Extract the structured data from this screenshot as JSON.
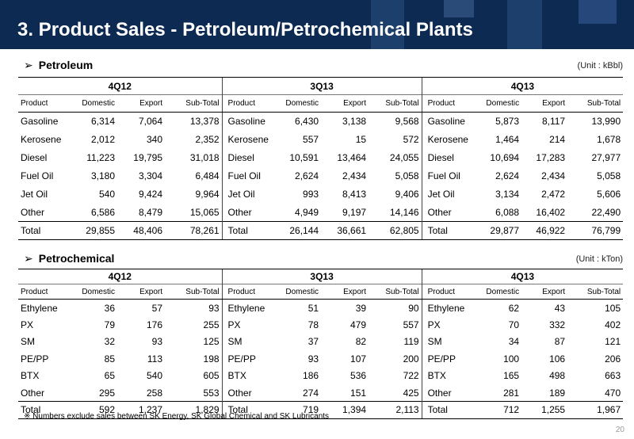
{
  "title": "3. Product Sales - Petroleum/Petrochemical Plants",
  "petroleum": {
    "heading": "Petroleum",
    "unit": "(Unit : kBbl)",
    "quarters": [
      "4Q12",
      "3Q13",
      "4Q13"
    ],
    "columns": [
      "Product",
      "Domestic",
      "Export",
      "Sub-Total"
    ],
    "rows": [
      [
        [
          "Gasoline",
          "6,314",
          "7,064",
          "13,378"
        ],
        [
          "Gasoline",
          "6,430",
          "3,138",
          "9,568"
        ],
        [
          "Gasoline",
          "5,873",
          "8,117",
          "13,990"
        ]
      ],
      [
        [
          "Kerosene",
          "2,012",
          "340",
          "2,352"
        ],
        [
          "Kerosene",
          "557",
          "15",
          "572"
        ],
        [
          "Kerosene",
          "1,464",
          "214",
          "1,678"
        ]
      ],
      [
        [
          "Diesel",
          "11,223",
          "19,795",
          "31,018"
        ],
        [
          "Diesel",
          "10,591",
          "13,464",
          "24,055"
        ],
        [
          "Diesel",
          "10,694",
          "17,283",
          "27,977"
        ]
      ],
      [
        [
          "Fuel Oil",
          "3,180",
          "3,304",
          "6,484"
        ],
        [
          "Fuel Oil",
          "2,624",
          "2,434",
          "5,058"
        ],
        [
          "Fuel Oil",
          "2,624",
          "2,434",
          "5,058"
        ]
      ],
      [
        [
          "Jet Oil",
          "540",
          "9,424",
          "9,964"
        ],
        [
          "Jet Oil",
          "993",
          "8,413",
          "9,406"
        ],
        [
          "Jet Oil",
          "3,134",
          "2,472",
          "5,606"
        ]
      ],
      [
        [
          "Other",
          "6,586",
          "8,479",
          "15,065"
        ],
        [
          "Other",
          "4,949",
          "9,197",
          "14,146"
        ],
        [
          "Other",
          "6,088",
          "16,402",
          "22,490"
        ]
      ]
    ],
    "total": [
      [
        "Total",
        "29,855",
        "48,406",
        "78,261"
      ],
      [
        "Total",
        "26,144",
        "36,661",
        "62,805"
      ],
      [
        "Total",
        "29,877",
        "46,922",
        "76,799"
      ]
    ]
  },
  "petrochemical": {
    "heading": "Petrochemical",
    "unit": "(Unit : kTon)",
    "quarters": [
      "4Q12",
      "3Q13",
      "4Q13"
    ],
    "columns": [
      "Product",
      "Domestic",
      "Export",
      "Sub-Total"
    ],
    "rows": [
      [
        [
          "Ethylene",
          "36",
          "57",
          "93"
        ],
        [
          "Ethylene",
          "51",
          "39",
          "90"
        ],
        [
          "Ethylene",
          "62",
          "43",
          "105"
        ]
      ],
      [
        [
          "PX",
          "79",
          "176",
          "255"
        ],
        [
          "PX",
          "78",
          "479",
          "557"
        ],
        [
          "PX",
          "70",
          "332",
          "402"
        ]
      ],
      [
        [
          "SM",
          "32",
          "93",
          "125"
        ],
        [
          "SM",
          "37",
          "82",
          "119"
        ],
        [
          "SM",
          "34",
          "87",
          "121"
        ]
      ],
      [
        [
          "PE/PP",
          "85",
          "113",
          "198"
        ],
        [
          "PE/PP",
          "93",
          "107",
          "200"
        ],
        [
          "PE/PP",
          "100",
          "106",
          "206"
        ]
      ],
      [
        [
          "BTX",
          "65",
          "540",
          "605"
        ],
        [
          "BTX",
          "186",
          "536",
          "722"
        ],
        [
          "BTX",
          "165",
          "498",
          "663"
        ]
      ],
      [
        [
          "Other",
          "295",
          "258",
          "553"
        ],
        [
          "Other",
          "274",
          "151",
          "425"
        ],
        [
          "Other",
          "281",
          "189",
          "470"
        ]
      ]
    ],
    "total": [
      [
        "Total",
        "592",
        "1,237",
        "1,829"
      ],
      [
        "Total",
        "719",
        "1,394",
        "2,113"
      ],
      [
        "Total",
        "712",
        "1,255",
        "1,967"
      ]
    ]
  },
  "footnote": "※ Numbers exclude sales between SK Energy, SK Global Chemical and SK Lubricants",
  "page_number": "20"
}
